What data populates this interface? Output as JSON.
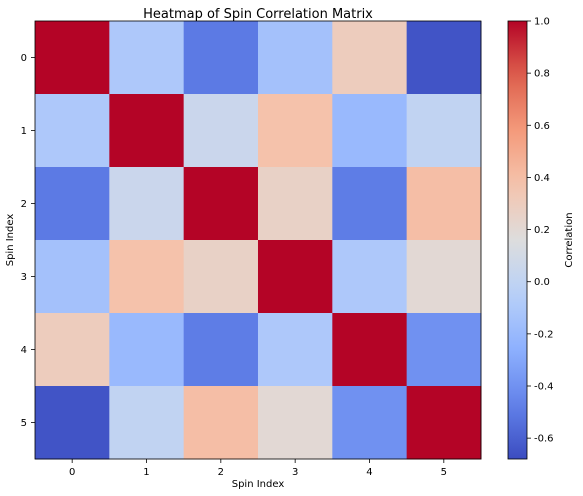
{
  "chart_data": {
    "type": "heatmap",
    "title": "Heatmap of Spin Correlation Matrix",
    "xlabel": "Spin Index",
    "ylabel": "Spin Index",
    "x_categories": [
      "0",
      "1",
      "2",
      "3",
      "4",
      "5"
    ],
    "y_categories": [
      "0",
      "1",
      "2",
      "3",
      "4",
      "5"
    ],
    "values": [
      [
        1.0,
        -0.1,
        -0.5,
        -0.15,
        0.3,
        -0.65
      ],
      [
        -0.1,
        1.0,
        0.05,
        0.38,
        -0.2,
        0.0
      ],
      [
        -0.5,
        0.05,
        1.0,
        0.26,
        -0.49,
        0.4
      ],
      [
        -0.15,
        0.38,
        0.26,
        1.0,
        -0.1,
        0.2
      ],
      [
        0.3,
        -0.2,
        -0.49,
        -0.1,
        1.0,
        -0.4
      ],
      [
        -0.65,
        0.0,
        0.4,
        0.2,
        -0.4,
        1.0
      ]
    ],
    "colormap": "coolwarm",
    "vmin": -0.68,
    "vmax": 1.0,
    "colorbar": {
      "label": "Correlation",
      "ticks": [
        "-0.6",
        "-0.4",
        "-0.2",
        "0.0",
        "0.2",
        "0.4",
        "0.6",
        "0.8",
        "1.0"
      ],
      "tick_values": [
        -0.6,
        -0.4,
        -0.2,
        0.0,
        0.2,
        0.4,
        0.6,
        0.8,
        1.0
      ],
      "placement": "right"
    },
    "grid": false
  }
}
